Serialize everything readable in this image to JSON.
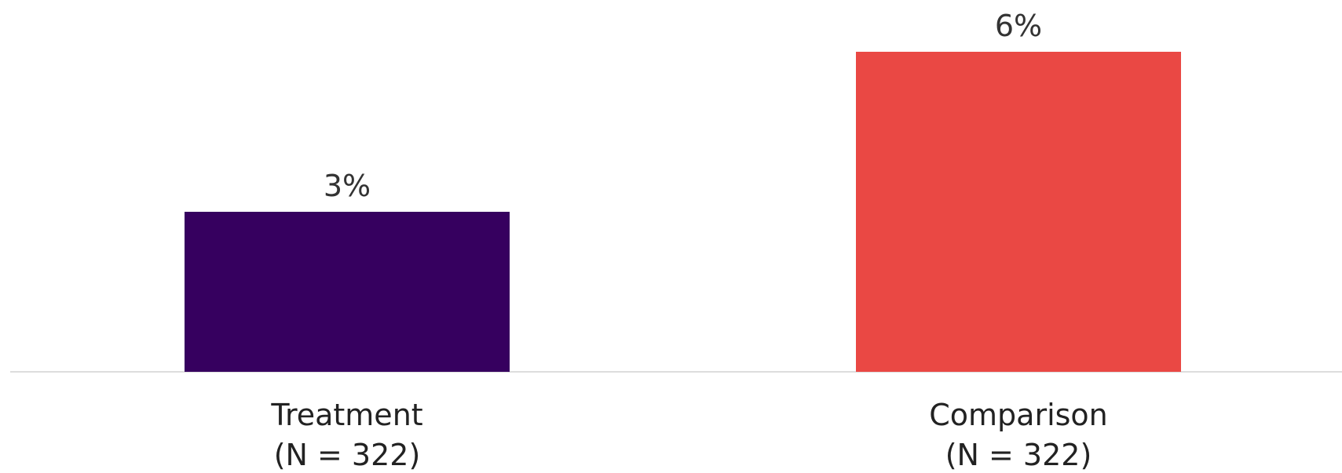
{
  "chart_data": {
    "type": "bar",
    "categories": [
      "Treatment",
      "Comparison"
    ],
    "category_sublabels": [
      "(N = 322)",
      "(N = 322)"
    ],
    "values": [
      3,
      6
    ],
    "value_labels": [
      "3%",
      "6%"
    ],
    "colors": [
      "#36005f",
      "#ea4844"
    ],
    "axis_color": "#dddddd",
    "title": "",
    "xlabel": "",
    "ylabel": "",
    "ylim": [
      0,
      6
    ],
    "grid": false,
    "legend": "none"
  }
}
